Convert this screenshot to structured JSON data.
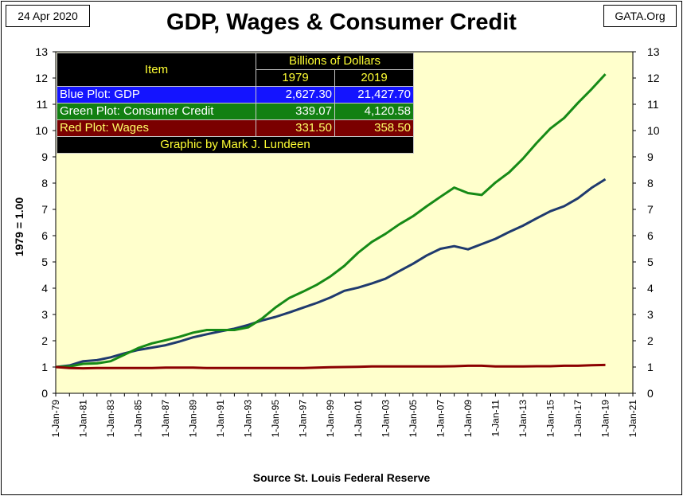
{
  "header": {
    "date": "24 Apr 2020",
    "site": "GATA.Org",
    "title": "GDP, Wages & Consumer Credit",
    "ylabel": "1979  =  1.00",
    "source": "Source St. Louis Federal Reserve"
  },
  "table": {
    "col_item": "Item",
    "col_group": "Billions of Dollars",
    "col_year1": "1979",
    "col_year2": "2019",
    "rows": [
      {
        "label": "Blue Plot: GDP",
        "v1979": "2,627.30",
        "v2019": "21,427.70",
        "bg": "#1414ff",
        "fg": "#ffffff"
      },
      {
        "label": "Green Plot: Consumer Credit",
        "v1979": "339.07",
        "v2019": "4,120.58",
        "bg": "#128012",
        "fg": "#ffffff"
      },
      {
        "label": "Red Plot: Wages",
        "v1979": "331.50",
        "v2019": "358.50",
        "bg": "#7a0000",
        "fg": "#ffff66"
      }
    ],
    "credit": "Graphic by Mark J. Lundeen"
  },
  "chart_data": {
    "type": "line",
    "title": "GDP, Wages & Consumer Credit",
    "xlabel": "",
    "ylabel": "1979  =  1.00",
    "ylim": [
      0,
      13
    ],
    "xlim": [
      1979,
      2021
    ],
    "grid": false,
    "y_ticks": [
      0,
      1,
      2,
      3,
      4,
      5,
      6,
      7,
      8,
      9,
      10,
      11,
      12,
      13
    ],
    "x_tick_labels": [
      "1-Jan-79",
      "1-Jan-81",
      "1-Jan-83",
      "1-Jan-85",
      "1-Jan-87",
      "1-Jan-89",
      "1-Jan-91",
      "1-Jan-93",
      "1-Jan-95",
      "1-Jan-97",
      "1-Jan-99",
      "1-Jan-01",
      "1-Jan-03",
      "1-Jan-05",
      "1-Jan-07",
      "1-Jan-09",
      "1-Jan-11",
      "1-Jan-13",
      "1-Jan-15",
      "1-Jan-17",
      "1-Jan-19",
      "1-Jan-21"
    ],
    "x": [
      1979,
      1980,
      1981,
      1982,
      1983,
      1984,
      1985,
      1986,
      1987,
      1988,
      1989,
      1990,
      1991,
      1992,
      1993,
      1994,
      1995,
      1996,
      1997,
      1998,
      1999,
      2000,
      2001,
      2002,
      2003,
      2004,
      2005,
      2006,
      2007,
      2008,
      2009,
      2010,
      2011,
      2012,
      2013,
      2014,
      2015,
      2016,
      2017,
      2018,
      2019
    ],
    "series": [
      {
        "color": "#1f3a6e",
        "values": [
          1.0,
          1.06,
          1.22,
          1.26,
          1.37,
          1.52,
          1.65,
          1.74,
          1.83,
          1.97,
          2.13,
          2.25,
          2.36,
          2.46,
          2.6,
          2.77,
          2.91,
          3.08,
          3.26,
          3.44,
          3.65,
          3.9,
          4.02,
          4.18,
          4.36,
          4.65,
          4.93,
          5.25,
          5.5,
          5.6,
          5.48,
          5.68,
          5.88,
          6.14,
          6.38,
          6.66,
          6.93,
          7.12,
          7.42,
          7.82,
          8.15
        ]
      },
      {
        "color": "#168a16",
        "values": [
          1.0,
          1.02,
          1.12,
          1.14,
          1.22,
          1.47,
          1.72,
          1.9,
          2.02,
          2.15,
          2.31,
          2.41,
          2.41,
          2.41,
          2.51,
          2.84,
          3.27,
          3.63,
          3.87,
          4.13,
          4.45,
          4.85,
          5.35,
          5.76,
          6.07,
          6.43,
          6.74,
          7.12,
          7.48,
          7.83,
          7.62,
          7.55,
          8.02,
          8.41,
          8.93,
          9.53,
          10.08,
          10.48,
          11.05,
          11.58,
          12.15
        ]
      },
      {
        "color": "#8b0000",
        "values": [
          1.0,
          0.96,
          0.95,
          0.96,
          0.96,
          0.96,
          0.96,
          0.96,
          0.98,
          0.98,
          0.98,
          0.96,
          0.96,
          0.96,
          0.96,
          0.96,
          0.96,
          0.96,
          0.96,
          0.98,
          0.99,
          1.0,
          1.01,
          1.02,
          1.02,
          1.02,
          1.02,
          1.02,
          1.02,
          1.03,
          1.05,
          1.05,
          1.02,
          1.02,
          1.02,
          1.03,
          1.03,
          1.05,
          1.05,
          1.07,
          1.08
        ]
      }
    ]
  }
}
